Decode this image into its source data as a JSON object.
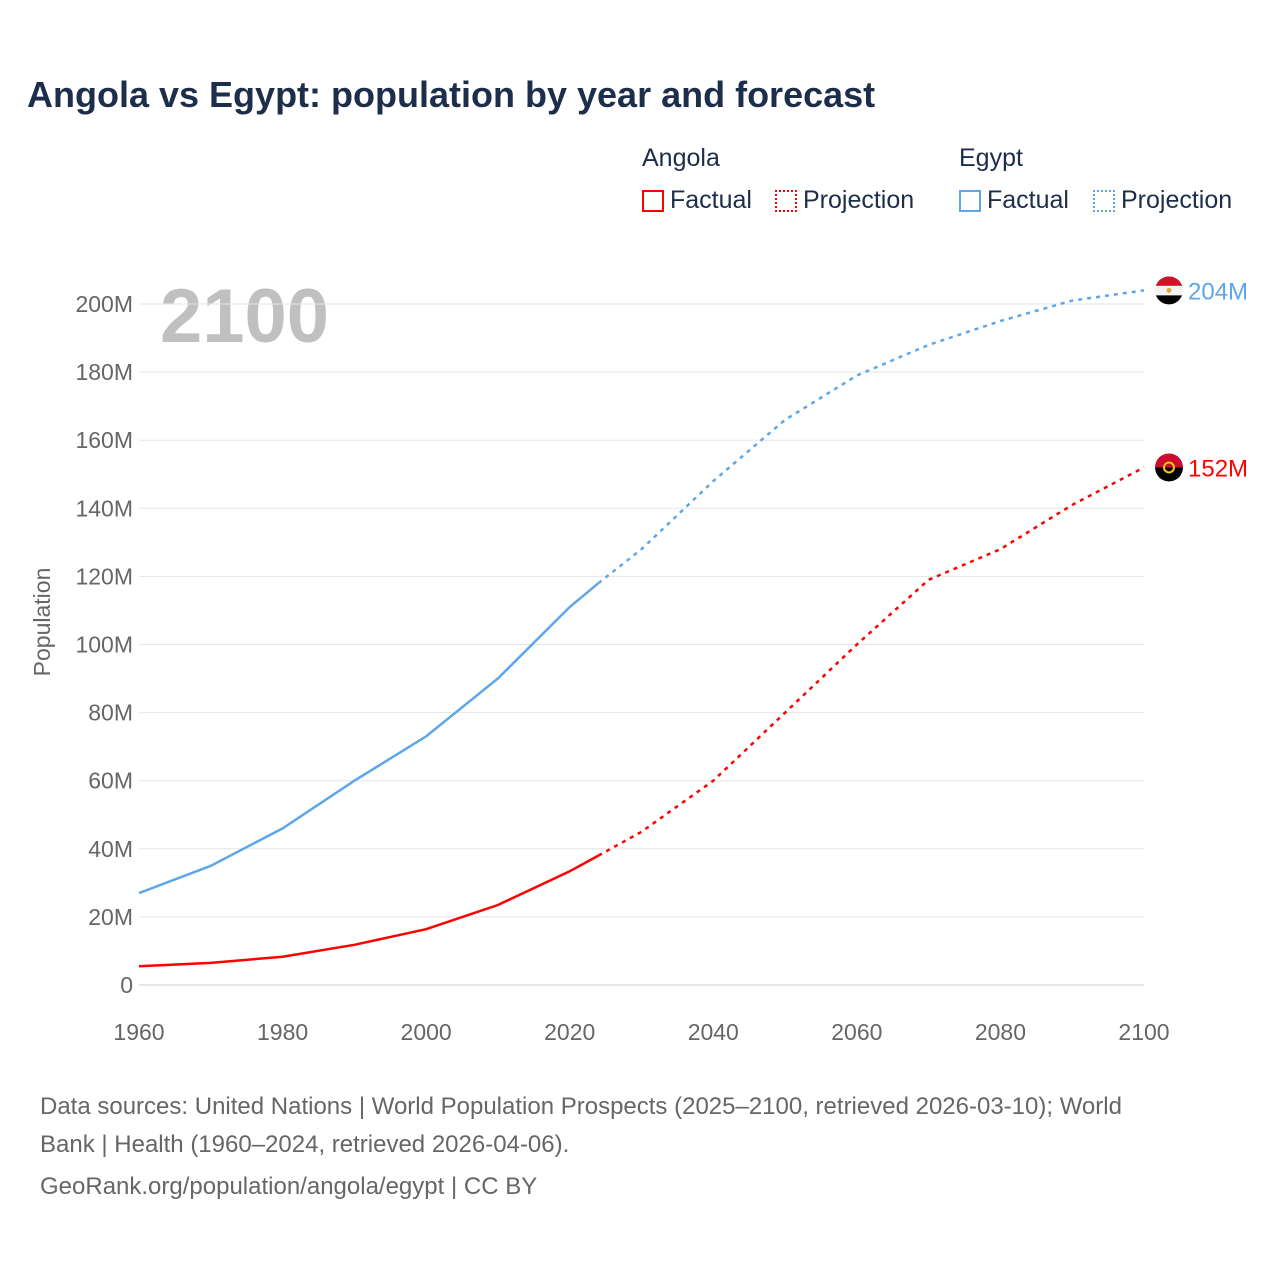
{
  "chart_data": {
    "type": "line",
    "title": "Angola vs Egypt: population by year and forecast",
    "ylabel": "Population",
    "xlabel": "",
    "xlim": [
      1960,
      2100
    ],
    "ylim": [
      0,
      200
    ],
    "x_ticks": [
      "1960",
      "1980",
      "2000",
      "2020",
      "2040",
      "2060",
      "2080",
      "2100"
    ],
    "y_ticks": [
      "0",
      "20M",
      "40M",
      "60M",
      "80M",
      "100M",
      "120M",
      "140M",
      "160M",
      "180M",
      "200M"
    ],
    "year_label": "2100",
    "grid": true,
    "units": "millions",
    "factual_end": 2024,
    "series": [
      {
        "name": "Egypt",
        "color": "#5ea6ea",
        "end_label": "204M",
        "x": [
          1960,
          1970,
          1980,
          1990,
          2000,
          2010,
          2020,
          2024,
          2030,
          2040,
          2050,
          2060,
          2070,
          2080,
          2090,
          2100
        ],
        "values": [
          27,
          35,
          46,
          60,
          73,
          90,
          111,
          118,
          128,
          148,
          166,
          179,
          188,
          195,
          201,
          204
        ]
      },
      {
        "name": "Angola",
        "color": "#ff0000",
        "end_label": "152M",
        "x": [
          1960,
          1970,
          1980,
          1990,
          2000,
          2010,
          2020,
          2024,
          2030,
          2040,
          2050,
          2060,
          2070,
          2080,
          2090,
          2100
        ],
        "values": [
          5.5,
          6.5,
          8.3,
          11.8,
          16.4,
          23.5,
          33.4,
          38,
          45,
          60,
          80,
          100,
          119,
          128,
          141,
          152
        ]
      }
    ],
    "legend": {
      "groups": [
        {
          "name": "Angola",
          "items": [
            "Factual",
            "Projection"
          ]
        },
        {
          "name": "Egypt",
          "items": [
            "Factual",
            "Projection"
          ]
        }
      ],
      "placement": "top-right"
    }
  },
  "sources": {
    "line1": "Data sources: United Nations | World Population Prospects (2025–2100, retrieved 2026-03-10); World",
    "line2": "Bank | Health (1960–2024, retrieved 2026-04-06).",
    "line3": "GeoRank.org/population/angola/egypt | CC BY"
  }
}
